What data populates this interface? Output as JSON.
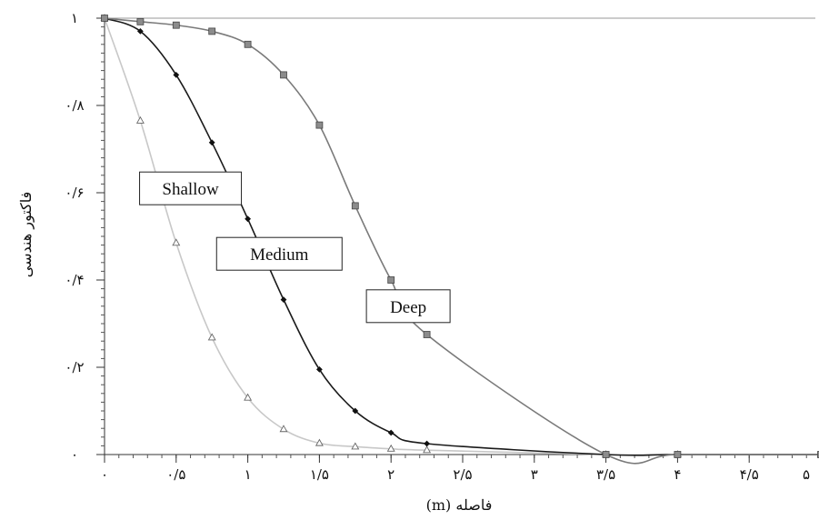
{
  "chart_data": {
    "type": "line",
    "title": "",
    "xlabel": "فاصله (m)",
    "ylabel": "فاکتور هندسی",
    "xlim": [
      0,
      5
    ],
    "ylim": [
      0,
      1
    ],
    "x_ticks": [
      {
        "value": 0,
        "label": "۰"
      },
      {
        "value": 0.5,
        "label": "۰/۵"
      },
      {
        "value": 1,
        "label": "۱"
      },
      {
        "value": 1.5,
        "label": "۱/۵"
      },
      {
        "value": 2,
        "label": "۲"
      },
      {
        "value": 2.5,
        "label": "۲/۵"
      },
      {
        "value": 3,
        "label": "۳"
      },
      {
        "value": 3.5,
        "label": "۳/۵"
      },
      {
        "value": 4,
        "label": "۴"
      },
      {
        "value": 4.5,
        "label": "۴/۵"
      },
      {
        "value": 5,
        "label": "۵"
      }
    ],
    "y_ticks": [
      {
        "value": 0,
        "label": "۰"
      },
      {
        "value": 0.2,
        "label": "۰/۲"
      },
      {
        "value": 0.4,
        "label": "۰/۴"
      },
      {
        "value": 0.6,
        "label": "۰/۶"
      },
      {
        "value": 0.8,
        "label": "۰/۸"
      },
      {
        "value": 1,
        "label": "۱"
      }
    ],
    "grid": false,
    "legend": "inline-labels",
    "series": [
      {
        "name": "Shallow",
        "color": "#c8c8c8",
        "marker": "triangle",
        "x": [
          0,
          0.25,
          0.5,
          0.75,
          1.0,
          1.25,
          1.5,
          1.75,
          2.0,
          2.25,
          3.5,
          4.0,
          5.0
        ],
        "y": [
          1.0,
          0.765,
          0.485,
          0.268,
          0.13,
          0.058,
          0.026,
          0.018,
          0.013,
          0.01,
          0.0,
          0.0,
          0.0
        ],
        "label_at": [
          0.6,
          0.61
        ]
      },
      {
        "name": "Medium",
        "color": "#1a1a1a",
        "marker": "diamond",
        "x": [
          0,
          0.25,
          0.5,
          0.75,
          1.0,
          1.25,
          1.5,
          1.75,
          2.0,
          2.25,
          3.5,
          4.0,
          5.0
        ],
        "y": [
          1.0,
          0.97,
          0.87,
          0.715,
          0.54,
          0.355,
          0.195,
          0.1,
          0.05,
          0.025,
          0.0,
          0.0,
          0.0
        ],
        "label_at": [
          1.22,
          0.46
        ]
      },
      {
        "name": "Deep",
        "color": "#7a7a7a",
        "marker": "square",
        "x": [
          0,
          0.25,
          0.5,
          0.75,
          1.0,
          1.25,
          1.5,
          1.75,
          2.0,
          2.25,
          3.5,
          4.0,
          5.0
        ],
        "y": [
          1.0,
          0.992,
          0.984,
          0.97,
          0.94,
          0.87,
          0.755,
          0.57,
          0.4,
          0.275,
          0.0,
          0.0,
          0.0
        ],
        "label_at": [
          2.12,
          0.34
        ]
      }
    ]
  }
}
